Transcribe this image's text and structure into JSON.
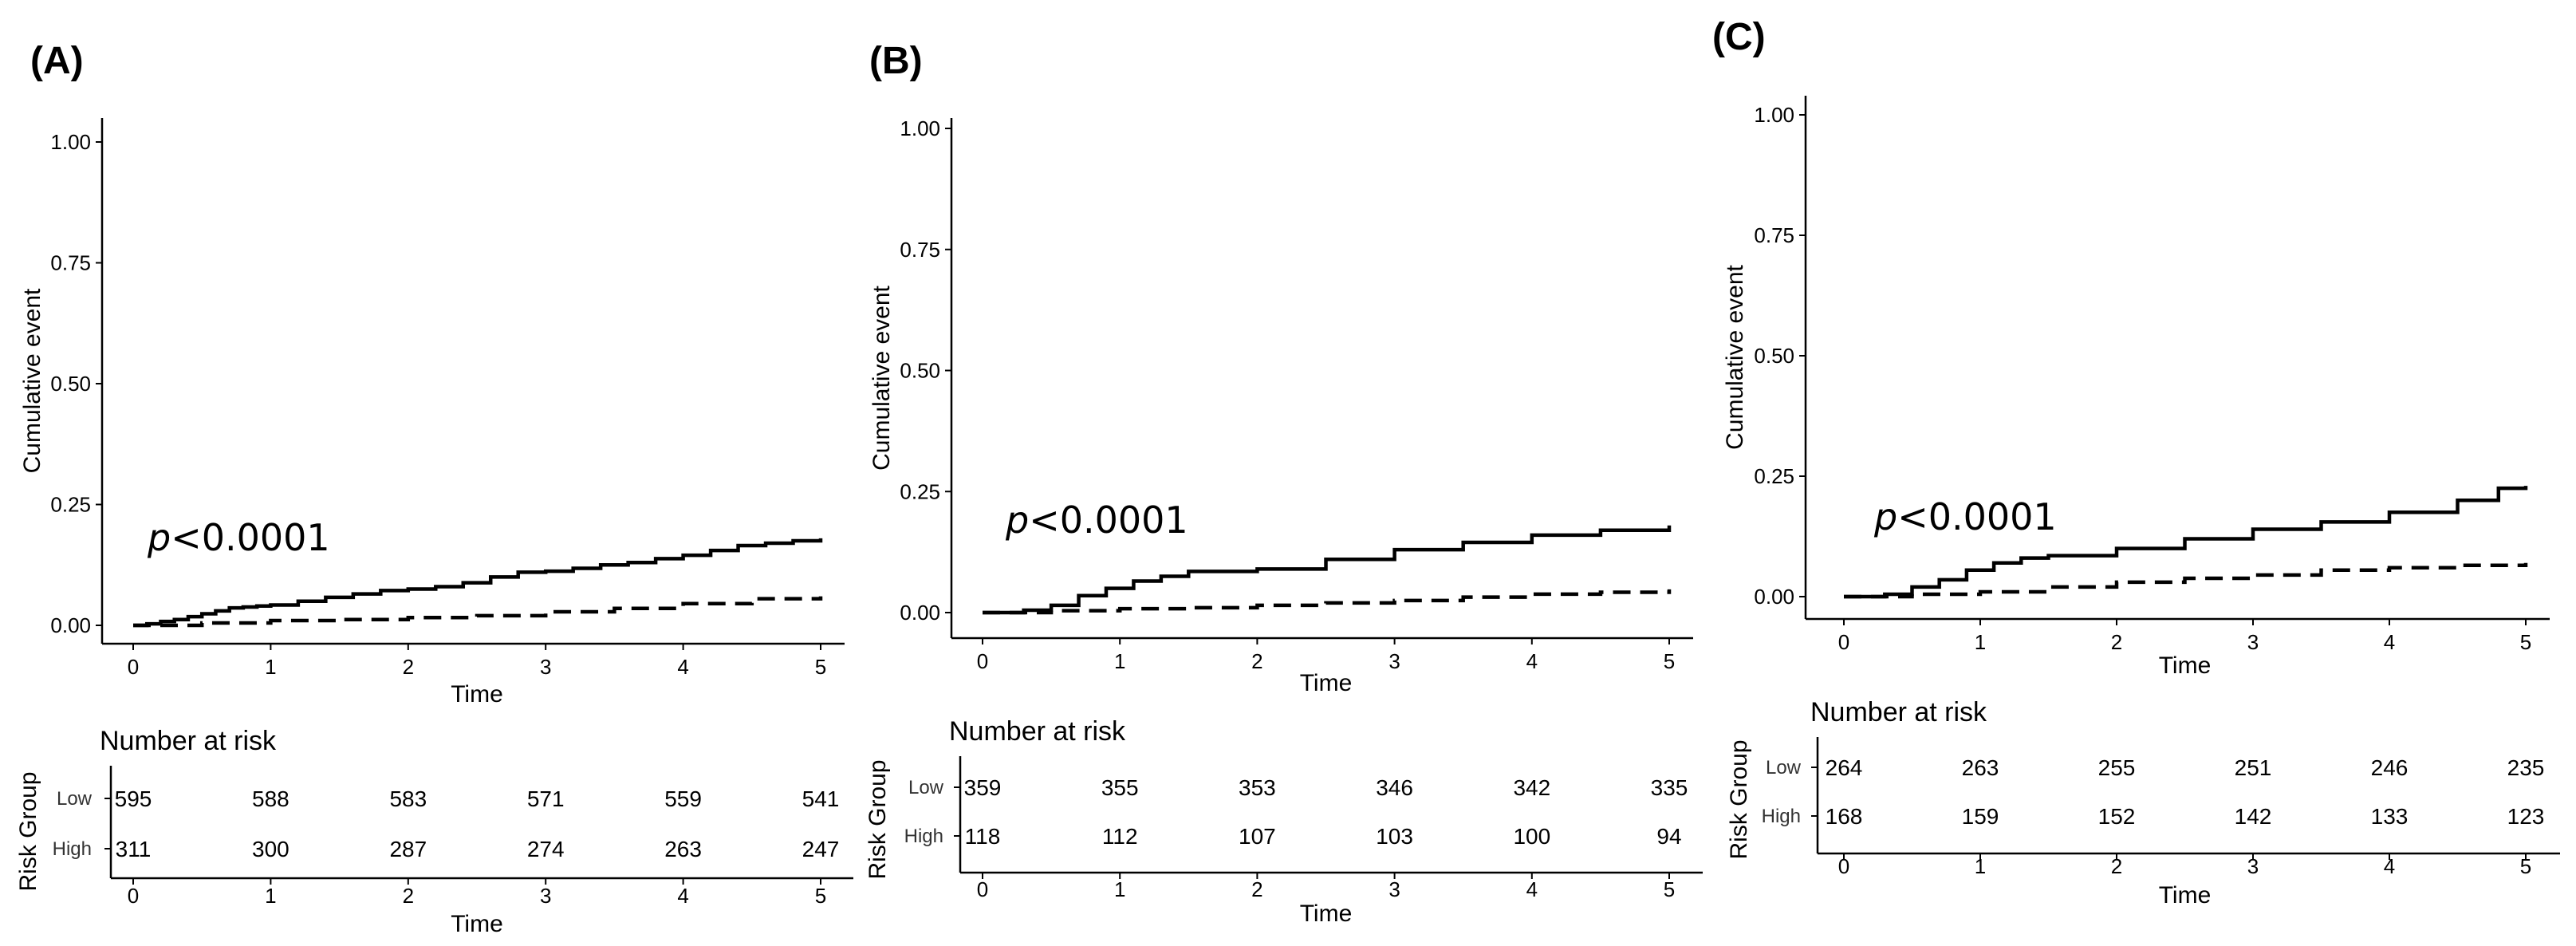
{
  "chart_data": [
    {
      "type": "line",
      "panel_label": "(A)",
      "ylabel": "Cumulative event",
      "xlabel": "Time",
      "ylim": [
        0,
        1
      ],
      "xlim": [
        0,
        5
      ],
      "yticks": [
        "0.00",
        "0.25",
        "0.50",
        "0.75",
        "1.00"
      ],
      "xticks": [
        "0",
        "1",
        "2",
        "3",
        "4",
        "5"
      ],
      "annotation": {
        "p": "p",
        "rest": "<0.0001"
      },
      "series": [
        {
          "name": "Low",
          "style": "solid",
          "x": [
            0,
            0.1,
            0.2,
            0.3,
            0.4,
            0.5,
            0.6,
            0.7,
            0.8,
            0.9,
            1.0,
            1.2,
            1.4,
            1.6,
            1.8,
            2.0,
            2.2,
            2.4,
            2.6,
            2.8,
            3.0,
            3.2,
            3.4,
            3.6,
            3.8,
            4.0,
            4.2,
            4.4,
            4.6,
            4.8,
            5.0
          ],
          "values": [
            0,
            0.003,
            0.008,
            0.012,
            0.018,
            0.024,
            0.03,
            0.036,
            0.038,
            0.04,
            0.042,
            0.05,
            0.058,
            0.065,
            0.072,
            0.075,
            0.08,
            0.088,
            0.1,
            0.11,
            0.112,
            0.118,
            0.125,
            0.13,
            0.138,
            0.145,
            0.155,
            0.165,
            0.17,
            0.175,
            0.18
          ]
        },
        {
          "name": "High",
          "style": "dashed",
          "x": [
            0,
            0.5,
            1.0,
            1.5,
            2.0,
            2.5,
            3.0,
            3.5,
            4.0,
            4.5,
            5.0
          ],
          "values": [
            0,
            0.005,
            0.01,
            0.012,
            0.016,
            0.02,
            0.028,
            0.035,
            0.045,
            0.055,
            0.06
          ]
        }
      ],
      "risk_table": {
        "title": "Number at risk",
        "group_axis_label": "Risk Group",
        "xlabel": "Time",
        "rows": [
          {
            "label": "Low",
            "counts": [
              "595",
              "588",
              "583",
              "571",
              "559",
              "541"
            ]
          },
          {
            "label": "High",
            "counts": [
              "311",
              "300",
              "287",
              "274",
              "263",
              "247"
            ]
          }
        ]
      }
    },
    {
      "type": "line",
      "panel_label": "(B)",
      "ylabel": "Cumulative event",
      "xlabel": "Time",
      "ylim": [
        0,
        1
      ],
      "xlim": [
        0,
        5
      ],
      "yticks": [
        "0.00",
        "0.25",
        "0.50",
        "0.75",
        "1.00"
      ],
      "xticks": [
        "0",
        "1",
        "2",
        "3",
        "4",
        "5"
      ],
      "annotation": {
        "p": "p",
        "rest": "<0.0001"
      },
      "series": [
        {
          "name": "Low",
          "style": "solid",
          "x": [
            0,
            0.3,
            0.5,
            0.7,
            0.9,
            1.1,
            1.3,
            1.5,
            2.0,
            2.5,
            3.0,
            3.5,
            4.0,
            4.5,
            5.0
          ],
          "values": [
            0,
            0.005,
            0.015,
            0.035,
            0.05,
            0.065,
            0.075,
            0.085,
            0.09,
            0.11,
            0.13,
            0.145,
            0.16,
            0.17,
            0.18
          ]
        },
        {
          "name": "High",
          "style": "dashed",
          "x": [
            0,
            0.5,
            1.0,
            1.5,
            2.0,
            2.5,
            3.0,
            3.5,
            4.0,
            4.5,
            5.0
          ],
          "values": [
            0,
            0.004,
            0.008,
            0.01,
            0.015,
            0.02,
            0.025,
            0.032,
            0.038,
            0.042,
            0.048
          ]
        }
      ],
      "risk_table": {
        "title": "Number at risk",
        "group_axis_label": "Risk Group",
        "xlabel": "Time",
        "rows": [
          {
            "label": "Low",
            "counts": [
              "359",
              "355",
              "353",
              "346",
              "342",
              "335"
            ]
          },
          {
            "label": "High",
            "counts": [
              "118",
              "112",
              "107",
              "103",
              "100",
              "94"
            ]
          }
        ]
      }
    },
    {
      "type": "line",
      "panel_label": "(C)",
      "ylabel": "Cumulative event",
      "xlabel": "Time",
      "ylim": [
        0,
        1
      ],
      "xlim": [
        0,
        5
      ],
      "yticks": [
        "0.00",
        "0.25",
        "0.50",
        "0.75",
        "1.00"
      ],
      "xticks": [
        "0",
        "1",
        "2",
        "3",
        "4",
        "5"
      ],
      "annotation": {
        "p": "p",
        "rest": "<0.0001"
      },
      "series": [
        {
          "name": "Low",
          "style": "solid",
          "x": [
            0,
            0.3,
            0.5,
            0.7,
            0.9,
            1.1,
            1.3,
            1.5,
            2.0,
            2.5,
            3.0,
            3.5,
            4.0,
            4.5,
            4.8,
            5.0
          ],
          "values": [
            0,
            0.005,
            0.02,
            0.035,
            0.055,
            0.07,
            0.08,
            0.085,
            0.1,
            0.12,
            0.14,
            0.155,
            0.175,
            0.2,
            0.225,
            0.23
          ]
        },
        {
          "name": "High",
          "style": "dashed",
          "x": [
            0,
            0.5,
            1.0,
            1.5,
            2.0,
            2.5,
            3.0,
            3.5,
            4.0,
            4.5,
            5.0
          ],
          "values": [
            0,
            0.005,
            0.01,
            0.02,
            0.03,
            0.038,
            0.045,
            0.055,
            0.06,
            0.065,
            0.07
          ]
        }
      ],
      "risk_table": {
        "title": "Number at risk",
        "group_axis_label": "Risk Group",
        "xlabel": "Time",
        "rows": [
          {
            "label": "Low",
            "counts": [
              "264",
              "263",
              "255",
              "251",
              "246",
              "235"
            ]
          },
          {
            "label": "High",
            "counts": [
              "168",
              "159",
              "152",
              "142",
              "133",
              "123"
            ]
          }
        ]
      }
    }
  ]
}
